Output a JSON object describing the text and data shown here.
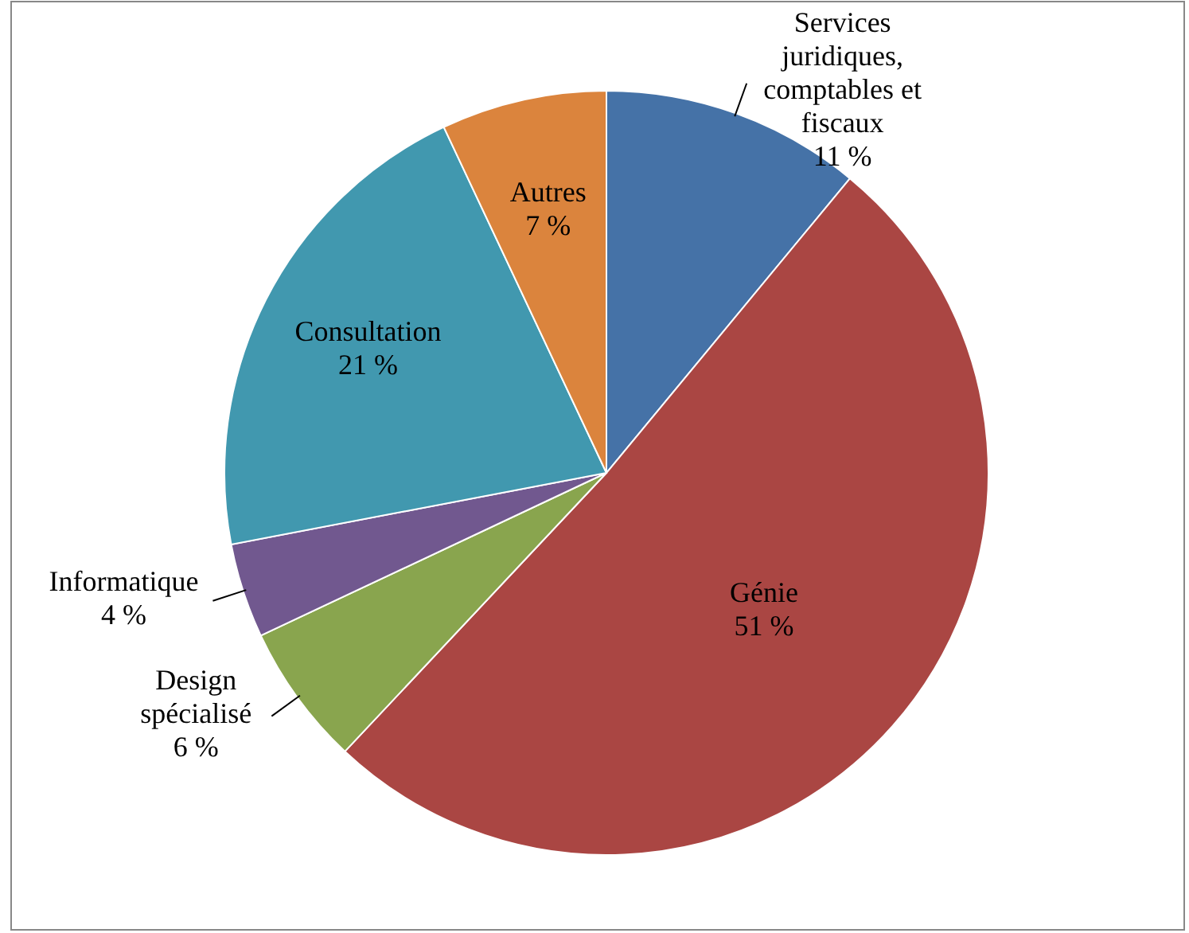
{
  "chart_data": {
    "type": "pie",
    "categories": [
      "Services juridiques, comptables et fiscaux",
      "Génie",
      "Design spécialisé",
      "Informatique",
      "Consultation",
      "Autres"
    ],
    "values": [
      11,
      51,
      6,
      4,
      21,
      7
    ],
    "value_labels": [
      "11 %",
      "51 %",
      "6 %",
      "4 %",
      "21 %",
      "7 %"
    ],
    "colors": [
      "#4572a7",
      "#aa4643",
      "#89a54e",
      "#71588f",
      "#4198af",
      "#db843d"
    ]
  }
}
